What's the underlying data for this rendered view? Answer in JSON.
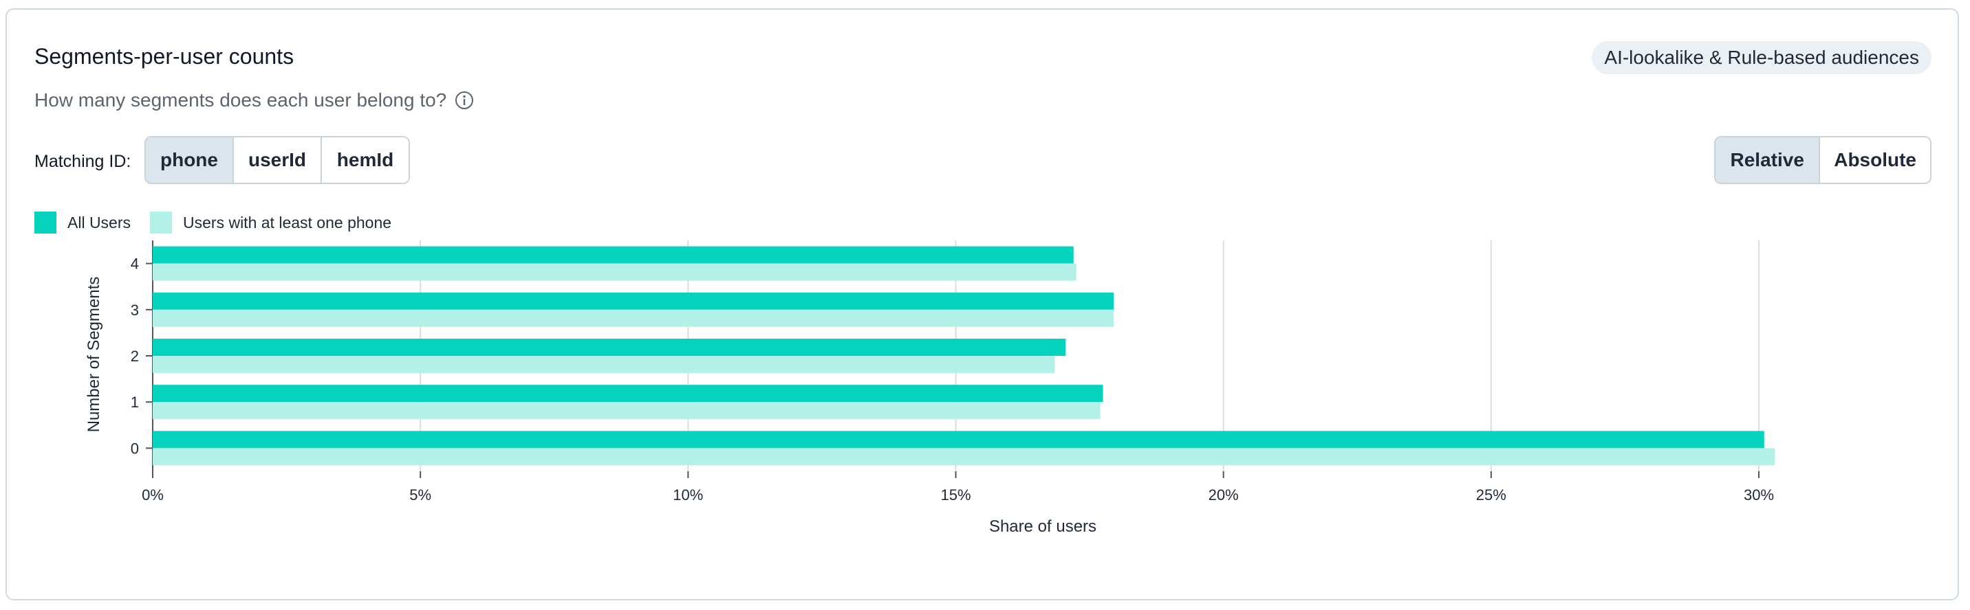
{
  "header": {
    "title": "Segments-per-user counts",
    "badge": "AI-lookalike & Rule-based audiences",
    "subtitle": "How many segments does each user belong to?"
  },
  "matching": {
    "label": "Matching ID:",
    "options": [
      "phone",
      "userId",
      "hemId"
    ],
    "selected": "phone"
  },
  "mode": {
    "options": [
      "Relative",
      "Absolute"
    ],
    "selected": "Relative"
  },
  "colors": {
    "all_users": "#05d3bd",
    "with_phone": "#b3f1e8",
    "grid": "#d9dde1"
  },
  "chart_data": {
    "type": "bar",
    "orientation": "horizontal",
    "categories": [
      "4",
      "3",
      "2",
      "1",
      "0"
    ],
    "series": [
      {
        "name": "All Users",
        "values": [
          17.2,
          17.95,
          17.05,
          17.75,
          30.1
        ]
      },
      {
        "name": "Users with at least one phone",
        "values": [
          17.25,
          17.95,
          16.85,
          17.7,
          30.3
        ]
      }
    ],
    "xlim": [
      0,
      30
    ],
    "xticks": [
      "0%",
      "5%",
      "10%",
      "15%",
      "20%",
      "25%",
      "30%"
    ],
    "xtick_values": [
      0,
      5,
      10,
      15,
      20,
      25,
      30
    ],
    "xlabel": "Share of users",
    "ylabel": "Number of Segments",
    "grid": true,
    "legend": "top-left"
  }
}
